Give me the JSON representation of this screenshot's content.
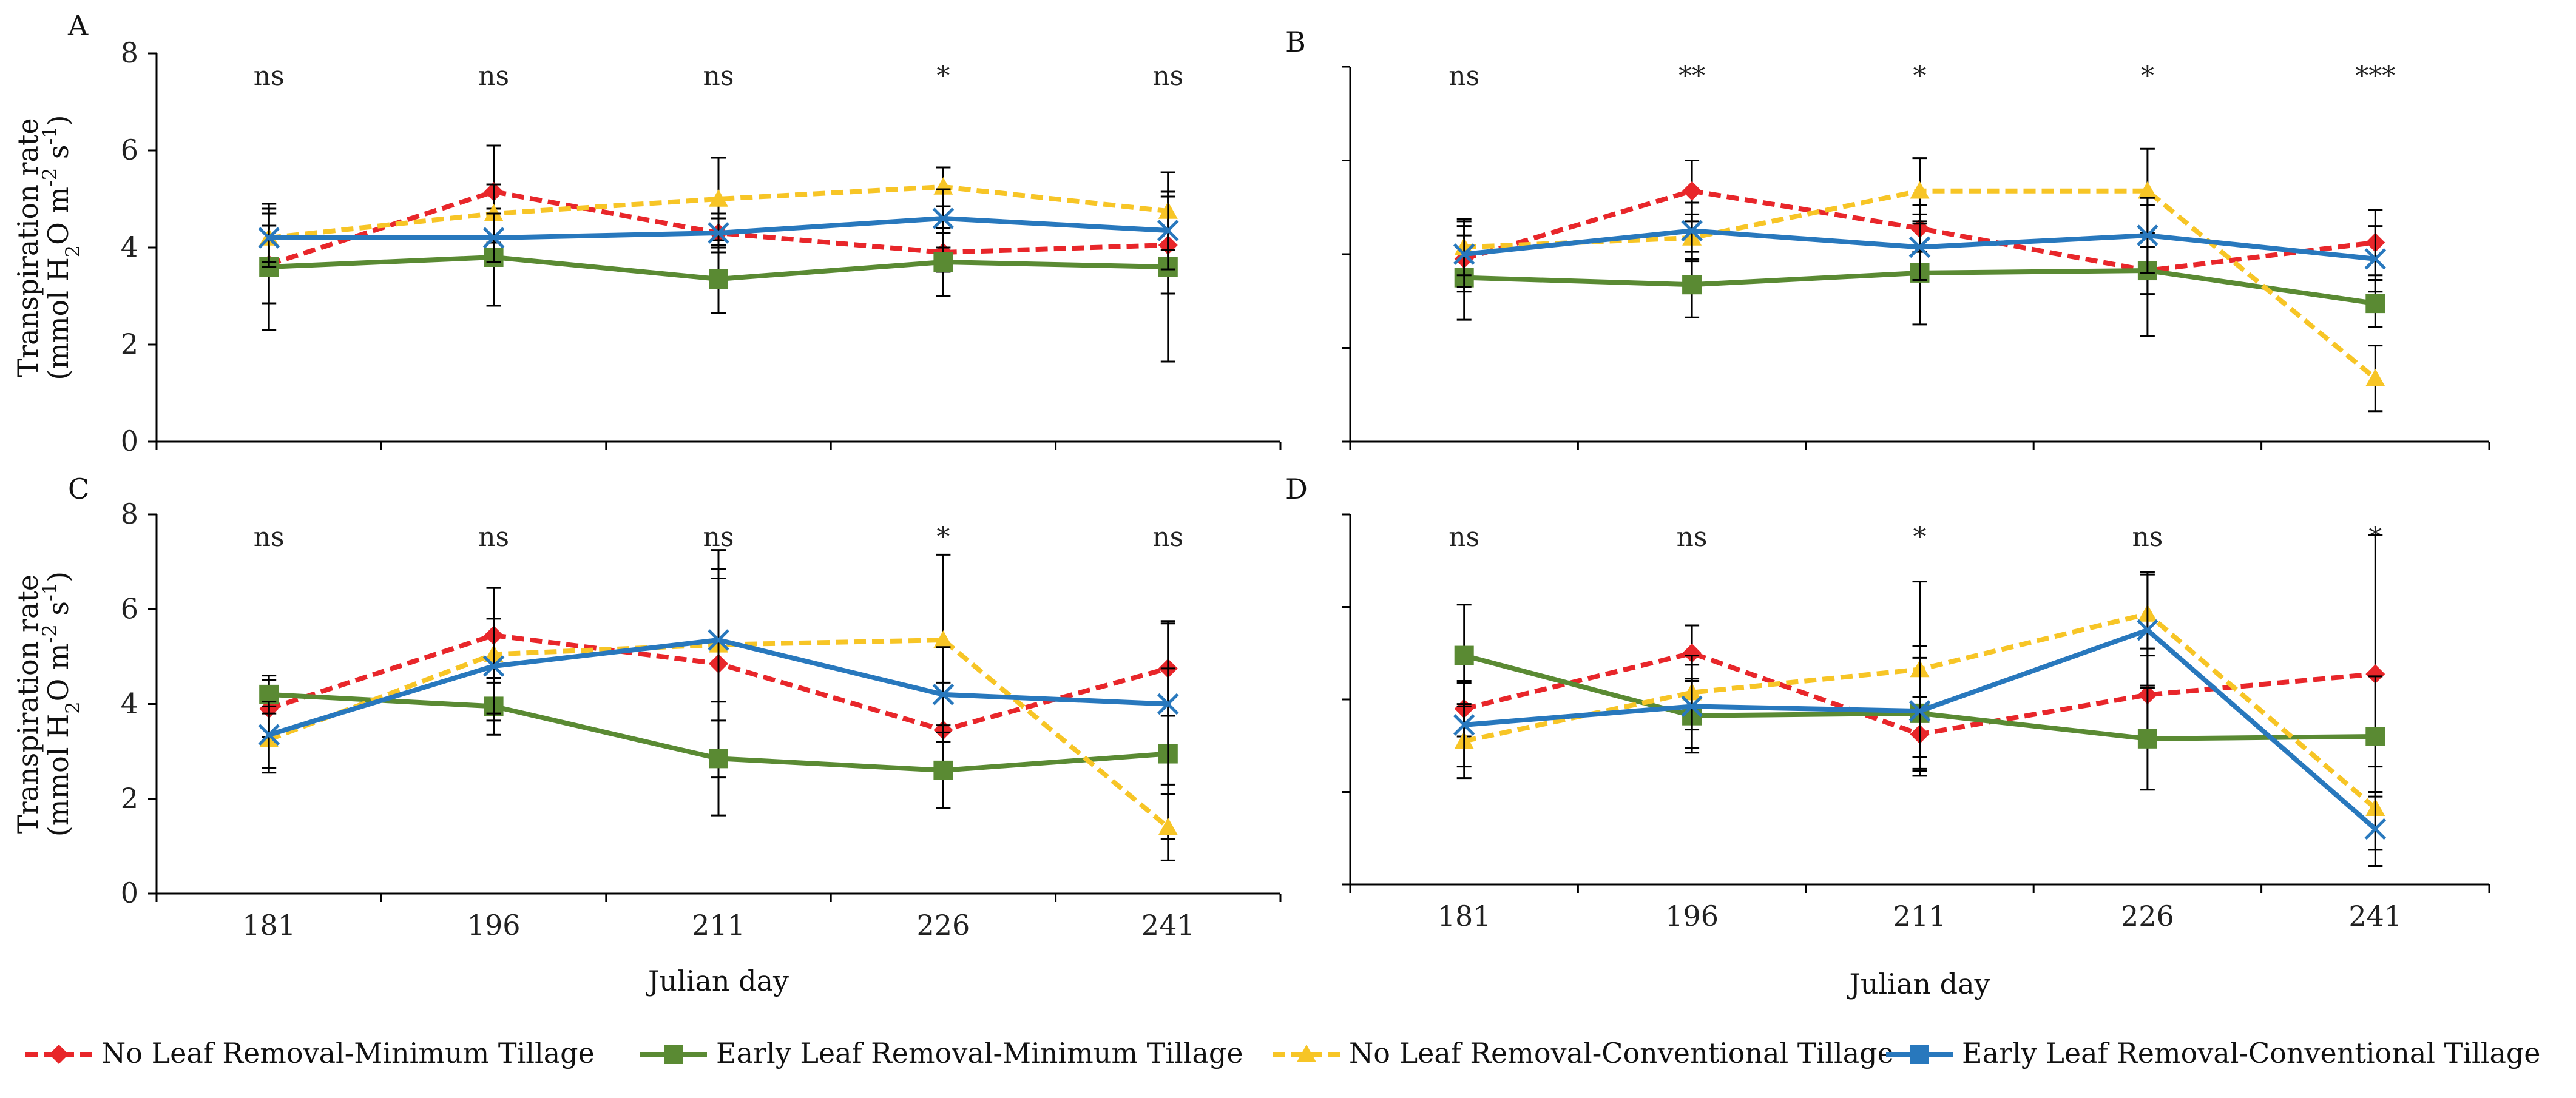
{
  "chart_data": {
    "type": "line",
    "x": [
      181,
      196,
      211,
      226,
      241
    ],
    "xlabel": "Julian day",
    "ylabel_lines": [
      "Transpiration rate",
      "(mmol H",
      "2",
      "O m",
      "-2",
      " s",
      "-1",
      ")"
    ],
    "ylim": [
      0,
      8
    ],
    "yticks": [
      0,
      2,
      4,
      6,
      8
    ],
    "series_style": [
      {
        "name": "No Leaf Removal-Minimum Tillage",
        "color": "#e8262a",
        "dash": true,
        "marker": "diamond"
      },
      {
        "name": "Early Leaf Removal-Minimum Tillage",
        "color": "#5a8a33",
        "dash": false,
        "marker": "square"
      },
      {
        "name": "No Leaf Removal-Conventional Tillage",
        "color": "#f7c526",
        "dash": true,
        "marker": "triangle"
      },
      {
        "name": "Early Leaf Removal-Conventional Tillage",
        "color": "#2878bd",
        "dash": false,
        "marker": "square-x"
      }
    ],
    "panels": [
      {
        "label": "A",
        "show_ytick_labels": true,
        "show_ylabel": true,
        "show_xtick_labels": false,
        "show_xlabel": false,
        "significance": [
          "ns",
          "ns",
          "ns",
          "*",
          "ns"
        ],
        "series": [
          {
            "name": "No Leaf Removal-Minimum Tillage",
            "values": [
              3.65,
              5.15,
              4.3,
              3.9,
              4.05
            ],
            "err": [
              0.8,
              0.95,
              0.3,
              0.4,
              1.0
            ]
          },
          {
            "name": "Early Leaf Removal-Minimum Tillage",
            "values": [
              3.6,
              3.8,
              3.35,
              3.7,
              3.6
            ],
            "err": [
              1.3,
              1.0,
              0.7,
              0.7,
              1.95
            ]
          },
          {
            "name": "No Leaf Removal-Conventional Tillage",
            "values": [
              4.2,
              4.7,
              5.0,
              5.25,
              4.75
            ],
            "err": [
              0.5,
              0.6,
              0.85,
              0.4,
              0.8
            ]
          },
          {
            "name": "Early Leaf Removal-Conventional Tillage",
            "values": [
              4.2,
              4.2,
              4.3,
              4.6,
              4.35
            ],
            "err": [
              0.6,
              0.5,
              0.4,
              0.6,
              0.8
            ]
          }
        ]
      },
      {
        "label": "B",
        "show_ytick_labels": false,
        "show_ylabel": false,
        "show_xtick_labels": false,
        "show_xlabel": false,
        "significance": [
          "ns",
          "**",
          "*",
          "*",
          "***"
        ],
        "series": [
          {
            "name": "No Leaf Removal-Minimum Tillage",
            "values": [
              3.9,
              5.35,
              4.55,
              3.65,
              4.25
            ],
            "err": [
              0.7,
              0.65,
              0.5,
              0.5,
              0.7
            ]
          },
          {
            "name": "Early Leaf Removal-Minimum Tillage",
            "values": [
              3.5,
              3.35,
              3.6,
              3.65,
              2.95
            ],
            "err": [
              0.9,
              0.7,
              1.1,
              1.4,
              0.5
            ]
          },
          {
            "name": "No Leaf Removal-Conventional Tillage",
            "values": [
              4.15,
              4.35,
              5.35,
              5.35,
              1.35
            ],
            "err": [
              0.6,
              0.5,
              0.7,
              0.9,
              0.7
            ]
          },
          {
            "name": "Early Leaf Removal-Conventional Tillage",
            "values": [
              4.0,
              4.5,
              4.15,
              4.4,
              3.9
            ],
            "err": [
              0.7,
              0.6,
              0.7,
              0.8,
              0.7
            ]
          }
        ]
      },
      {
        "label": "C",
        "show_ytick_labels": true,
        "show_ylabel": true,
        "show_xtick_labels": true,
        "show_xlabel": true,
        "significance": [
          "ns",
          "ns",
          "ns",
          "*",
          "ns"
        ],
        "series": [
          {
            "name": "No Leaf Removal-Minimum Tillage",
            "values": [
              3.9,
              5.45,
              4.85,
              3.45,
              4.75
            ],
            "err": [
              0.6,
              1.0,
              2.4,
              1.0,
              1.0
            ]
          },
          {
            "name": "Early Leaf Removal-Minimum Tillage",
            "values": [
              4.2,
              3.95,
              2.85,
              2.6,
              2.95
            ],
            "err": [
              0.4,
              0.6,
              1.2,
              0.8,
              1.8
            ]
          },
          {
            "name": "No Leaf Removal-Conventional Tillage",
            "values": [
              3.25,
              5.05,
              5.25,
              5.35,
              1.4
            ],
            "err": [
              0.7,
              1.4,
              1.6,
              1.8,
              0.7
            ]
          },
          {
            "name": "Early Leaf Removal-Conventional Tillage",
            "values": [
              3.35,
              4.8,
              5.35,
              4.2,
              4.0
            ],
            "err": [
              0.7,
              1.0,
              1.3,
              1.0,
              1.7
            ]
          }
        ]
      },
      {
        "label": "D",
        "show_ytick_labels": false,
        "show_ylabel": false,
        "show_xtick_labels": true,
        "show_xlabel": true,
        "significance": [
          "ns",
          "ns",
          "*",
          "ns",
          "*"
        ],
        "series": [
          {
            "name": "No Leaf Removal-Minimum Tillage",
            "values": [
              3.8,
              5.0,
              3.25,
              4.1,
              4.55
            ],
            "err": [
              0.6,
              0.6,
              0.8,
              1.0,
              3.0
            ]
          },
          {
            "name": "Early Leaf Removal-Minimum Tillage",
            "values": [
              4.95,
              3.65,
              3.7,
              3.15,
              3.2
            ],
            "err": [
              1.1,
              0.8,
              1.2,
              1.1,
              1.3
            ]
          },
          {
            "name": "No Leaf Removal-Conventional Tillage",
            "values": [
              3.1,
              4.15,
              4.65,
              5.85,
              1.65
            ],
            "err": [
              0.8,
              0.8,
              1.9,
              0.9,
              0.9
            ]
          },
          {
            "name": "Early Leaf Removal-Conventional Tillage",
            "values": [
              3.45,
              3.85,
              3.75,
              5.5,
              1.2
            ],
            "err": [
              0.9,
              0.9,
              1.4,
              1.2,
              0.8
            ]
          }
        ]
      }
    ],
    "legend": [
      "No Leaf Removal-Minimum Tillage",
      "Early Leaf Removal-Minimum Tillage",
      "No Leaf Removal-Conventional Tillage",
      "Early Leaf Removal-Conventional Tillage"
    ]
  }
}
